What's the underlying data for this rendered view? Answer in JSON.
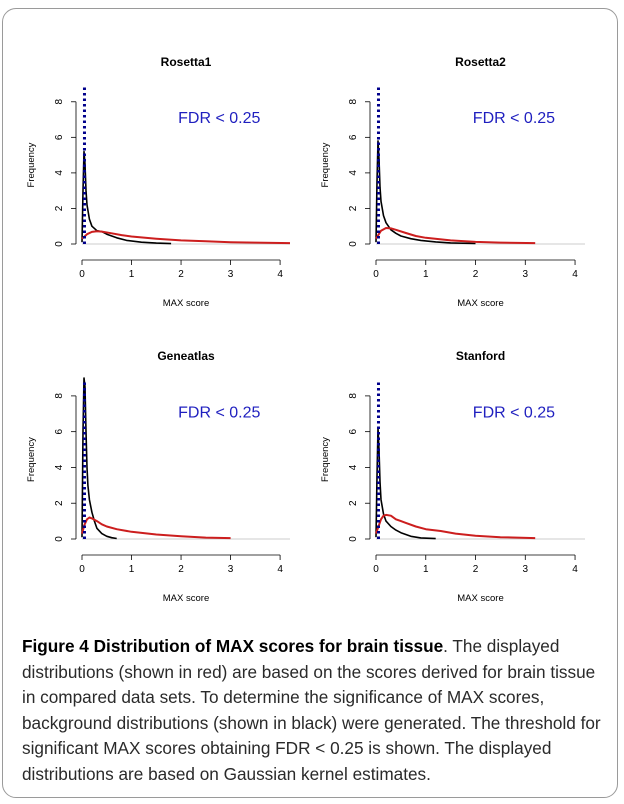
{
  "figure": {
    "caption_label": "Figure 4",
    "caption_title": "Distribution of MAX scores for brain tissue",
    "caption_text": ". The displayed distributions (shown in red) are based on the scores derived for brain tissue in compared data sets. To determine the significance of MAX scores, background distributions (shown in black) were generated. The threshold for significant MAX scores obtaining FDR < 0.25 is shown. The displayed distributions are based on Gaussian kernel estimates."
  },
  "colors": {
    "background": "#000000",
    "observed": "#cc1e1e",
    "threshold": "#00008b",
    "annotation": "#1f1fbf"
  },
  "chart_data": [
    {
      "type": "line",
      "title": "Rosetta1",
      "xlabel": "MAX score",
      "ylabel": "Frequency",
      "xlim": [
        0,
        4.2
      ],
      "ylim": [
        0,
        9
      ],
      "xticks": [
        0,
        1,
        2,
        3,
        4
      ],
      "yticks": [
        0,
        2,
        4,
        6,
        8
      ],
      "annotation": "FDR < 0.25",
      "threshold_x": 0.05,
      "series": [
        {
          "role": "background",
          "x": [
            0,
            0.02,
            0.04,
            0.06,
            0.08,
            0.1,
            0.15,
            0.2,
            0.3,
            0.4,
            0.5,
            0.7,
            0.9,
            1.2,
            1.5,
            1.8
          ],
          "y": [
            0.1,
            3.0,
            5.2,
            4.5,
            3.0,
            2.2,
            1.4,
            1.0,
            0.75,
            0.7,
            0.55,
            0.35,
            0.2,
            0.1,
            0.05,
            0.02
          ]
        },
        {
          "role": "observed",
          "x": [
            0,
            0.1,
            0.2,
            0.3,
            0.4,
            0.6,
            0.8,
            1.0,
            1.5,
            2.0,
            2.5,
            3.0,
            3.5,
            4.2
          ],
          "y": [
            0.3,
            0.55,
            0.68,
            0.72,
            0.7,
            0.6,
            0.5,
            0.42,
            0.3,
            0.2,
            0.15,
            0.1,
            0.08,
            0.05
          ]
        }
      ]
    },
    {
      "type": "line",
      "title": "Rosetta2",
      "xlabel": "MAX score",
      "ylabel": "Frequency",
      "xlim": [
        0,
        4.2
      ],
      "ylim": [
        0,
        9
      ],
      "xticks": [
        0,
        1,
        2,
        3,
        4
      ],
      "yticks": [
        0,
        2,
        4,
        6,
        8
      ],
      "annotation": "FDR < 0.25",
      "threshold_x": 0.05,
      "series": [
        {
          "role": "background",
          "x": [
            0,
            0.02,
            0.04,
            0.06,
            0.08,
            0.1,
            0.15,
            0.2,
            0.3,
            0.4,
            0.5,
            0.7,
            0.9,
            1.2,
            1.5,
            2.0
          ],
          "y": [
            0.1,
            3.5,
            5.8,
            4.8,
            3.2,
            2.4,
            1.6,
            1.2,
            0.8,
            0.6,
            0.45,
            0.3,
            0.2,
            0.12,
            0.06,
            0.03
          ]
        },
        {
          "role": "observed",
          "x": [
            0,
            0.1,
            0.2,
            0.3,
            0.4,
            0.6,
            0.8,
            1.0,
            1.5,
            2.0,
            2.5,
            3.2
          ],
          "y": [
            0.3,
            0.75,
            0.9,
            0.88,
            0.8,
            0.62,
            0.45,
            0.35,
            0.2,
            0.12,
            0.08,
            0.05
          ]
        }
      ]
    },
    {
      "type": "line",
      "title": "Geneatlas",
      "xlabel": "MAX score",
      "ylabel": "Frequency",
      "xlim": [
        0,
        4.2
      ],
      "ylim": [
        0,
        9
      ],
      "xticks": [
        0,
        1,
        2,
        3,
        4
      ],
      "yticks": [
        0,
        2,
        4,
        6,
        8
      ],
      "annotation": "FDR < 0.25",
      "threshold_x": 0.05,
      "series": [
        {
          "role": "background",
          "x": [
            0,
            0.02,
            0.04,
            0.06,
            0.08,
            0.1,
            0.12,
            0.15,
            0.2,
            0.25,
            0.3,
            0.4,
            0.5,
            0.6,
            0.7
          ],
          "y": [
            0.1,
            6.0,
            9.0,
            8.5,
            6.0,
            4.0,
            3.0,
            2.2,
            1.5,
            1.0,
            0.6,
            0.3,
            0.15,
            0.07,
            0.03
          ]
        },
        {
          "role": "observed",
          "x": [
            0,
            0.05,
            0.1,
            0.15,
            0.2,
            0.3,
            0.4,
            0.5,
            0.7,
            1.0,
            1.5,
            2.0,
            2.5,
            3.0
          ],
          "y": [
            0.3,
            0.8,
            1.1,
            1.2,
            1.15,
            1.0,
            0.82,
            0.7,
            0.55,
            0.4,
            0.25,
            0.15,
            0.08,
            0.05
          ]
        }
      ]
    },
    {
      "type": "line",
      "title": "Stanford",
      "xlabel": "MAX score",
      "ylabel": "Frequency",
      "xlim": [
        0,
        4.2
      ],
      "ylim": [
        0,
        9
      ],
      "xticks": [
        0,
        1,
        2,
        3,
        4
      ],
      "yticks": [
        0,
        2,
        4,
        6,
        8
      ],
      "annotation": "FDR < 0.25",
      "threshold_x": 0.05,
      "series": [
        {
          "role": "background",
          "x": [
            0,
            0.02,
            0.04,
            0.06,
            0.08,
            0.1,
            0.15,
            0.2,
            0.3,
            0.4,
            0.5,
            0.7,
            0.9,
            1.2
          ],
          "y": [
            0.1,
            3.5,
            6.2,
            5.0,
            3.2,
            2.2,
            1.4,
            1.0,
            0.7,
            0.5,
            0.35,
            0.15,
            0.06,
            0.02
          ]
        },
        {
          "role": "observed",
          "x": [
            0,
            0.1,
            0.15,
            0.2,
            0.3,
            0.4,
            0.5,
            0.6,
            0.8,
            1.0,
            1.3,
            1.6,
            2.0,
            2.5,
            3.2
          ],
          "y": [
            0.3,
            1.1,
            1.3,
            1.35,
            1.3,
            1.1,
            1.0,
            0.9,
            0.7,
            0.55,
            0.45,
            0.3,
            0.18,
            0.1,
            0.05
          ]
        }
      ]
    }
  ]
}
